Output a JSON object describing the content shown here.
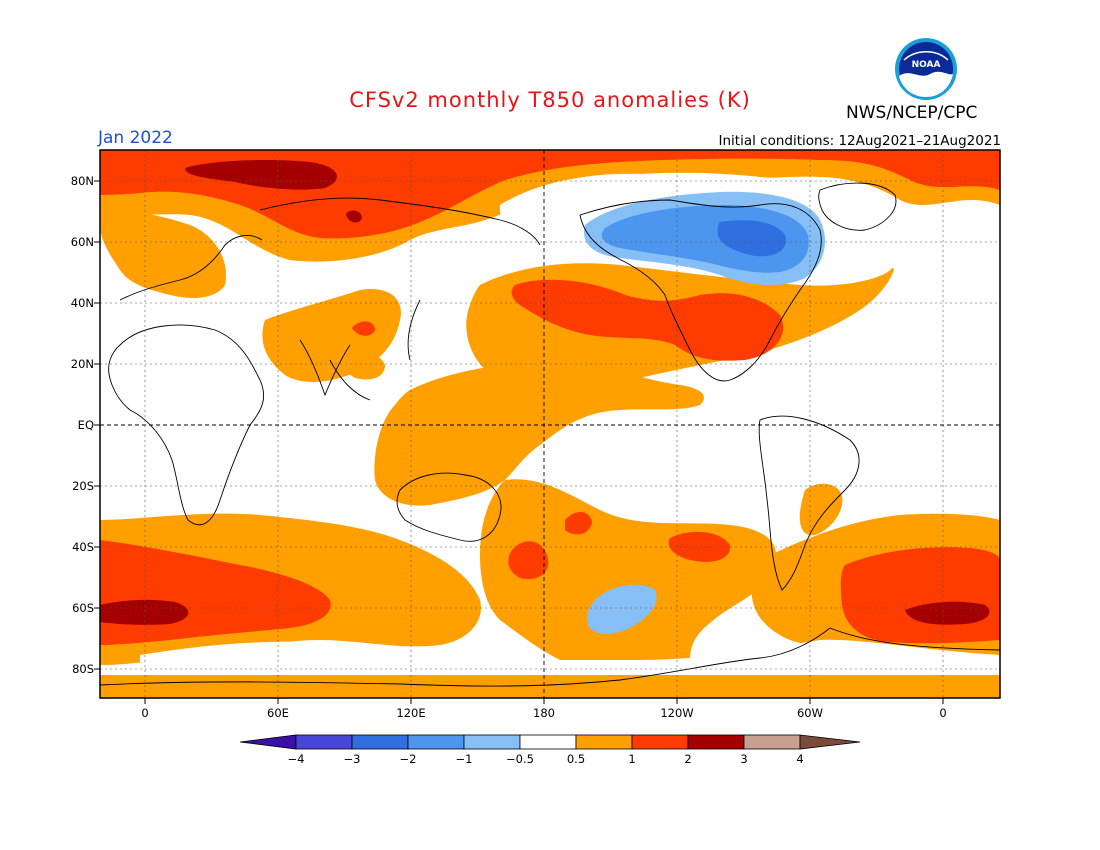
{
  "title": "CFSv2 monthly T850 anomalies (K)",
  "agency": "NWS/NCEP/CPC",
  "logo_text": "NOAA",
  "valid_month": "Jan 2022",
  "initial_conditions": "Initial conditions: 12Aug2021–21Aug2021",
  "axes": {
    "lat_labels": [
      "80N",
      "60N",
      "40N",
      "20N",
      "EQ",
      "20S",
      "40S",
      "60S",
      "80S"
    ],
    "lon_labels": [
      "0",
      "60E",
      "120E",
      "180",
      "120W",
      "60W",
      "0"
    ]
  },
  "colorbar": {
    "labels": [
      "−4",
      "−3",
      "−2",
      "−1",
      "−0.5",
      "0.5",
      "1",
      "2",
      "3",
      "4"
    ],
    "colors": [
      "#3a10a8",
      "#4848d8",
      "#2f6fe0",
      "#4d96f0",
      "#86bff5",
      "#ffffff",
      "#ff9f00",
      "#ff3c00",
      "#a50000",
      "#c8a090",
      "#7a4a3a"
    ]
  },
  "anomaly_colors": {
    "cold_-0.5_to_-1": "#86bff5",
    "cold_-1_to_-2": "#4d96f0",
    "warm_0.5_to_1": "#ff9f00",
    "warm_1_to_2": "#ff3c00",
    "warm_2_to_3": "#a50000"
  }
}
